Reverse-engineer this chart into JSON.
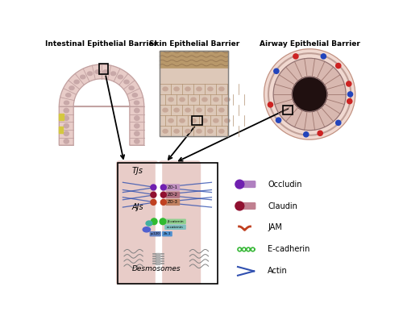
{
  "bg_color": "#ffffff",
  "intestinal_label": "Intestinal Epithelial Barrier",
  "skin_label": "Skin Epithelial Barrier",
  "airway_label": "Airway Epithelial Barrier",
  "cell_color": "#e8ccc8",
  "cell_border": "#c0a0a0",
  "cell_nucleus": "#c8a8a8",
  "skin_top_color": "#b8986a",
  "skin_cell_color": "#ddc8b8",
  "skin_cell_light": "#f0e0d8",
  "skin_border": "#b09070",
  "airway_outer_color": "#f0d8d0",
  "airway_mid_color": "#e8c8c0",
  "airway_epithelium": "#d8b8b0",
  "airway_inner_color": "#201010",
  "yellow_marker": "#d4c840",
  "tj_label": "TJs",
  "aj_label": "AJs",
  "desmosome_label": "Desmosomes",
  "occludin_color": "#7020b0",
  "claudin_color": "#901030",
  "jam_color": "#c04020",
  "ecadherin_color": "#38b838",
  "actin_color": "#3050b0",
  "zo_box_color1": "#c090c0",
  "zo_box_color2": "#b07080",
  "zo_box_color3": "#c08060",
  "alpha_cat_color": "#40b0a0",
  "beta_cat_color": "#5060d0",
  "p120_color": "#6080c0",
  "zo1_aj_color": "#5090d0",
  "legend_items": [
    "Occludin",
    "Claudin",
    "JAM",
    "E-cadherin",
    "Actin"
  ]
}
